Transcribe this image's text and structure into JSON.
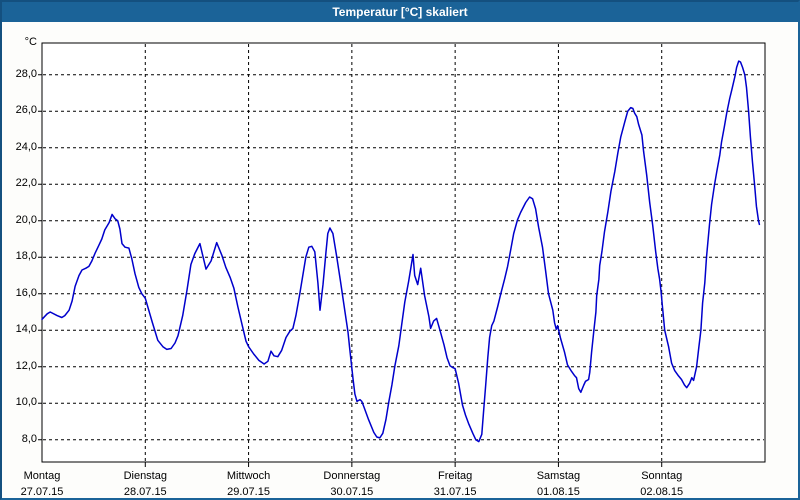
{
  "window": {
    "title": "Temperatur [°C] skaliert"
  },
  "colors": {
    "titlebar": "#1b6398",
    "window_border": "#1b6398",
    "plot_border": "#000000",
    "background": "#fdfdfb",
    "line": "#0000cc",
    "grid": "#000000"
  },
  "chart_data": {
    "type": "line",
    "title": "Temperatur [°C] skaliert",
    "ylabel": "°C",
    "grid": "dashed",
    "legend": "none",
    "y_plot_range": [
      6.78,
      29.74
    ],
    "y_ticks": [
      {
        "value": 8,
        "label": "8,0"
      },
      {
        "value": 10,
        "label": "10,0"
      },
      {
        "value": 12,
        "label": "12,0"
      },
      {
        "value": 14,
        "label": "14,0"
      },
      {
        "value": 16,
        "label": "16,0"
      },
      {
        "value": 18,
        "label": "18,0"
      },
      {
        "value": 20,
        "label": "20,0"
      },
      {
        "value": 22,
        "label": "22,0"
      },
      {
        "value": 24,
        "label": "24,0"
      },
      {
        "value": 26,
        "label": "26,0"
      },
      {
        "value": 28,
        "label": "28,0"
      }
    ],
    "x_hours_total": 168,
    "x_days": [
      {
        "day": "Montag",
        "date": "27.07.15",
        "hour": 0
      },
      {
        "day": "Dienstag",
        "date": "28.07.15",
        "hour": 24
      },
      {
        "day": "Mittwoch",
        "date": "29.07.15",
        "hour": 48
      },
      {
        "day": "Donnerstag",
        "date": "30.07.15",
        "hour": 72
      },
      {
        "day": "Freitag",
        "date": "31.07.15",
        "hour": 96
      },
      {
        "day": "Samstag",
        "date": "01.08.15",
        "hour": 120
      },
      {
        "day": "Sonntag",
        "date": "02.08.15",
        "hour": 144
      }
    ],
    "series": [
      {
        "name": "Temperatur",
        "color": "#0000cc",
        "points": [
          [
            0,
            14.6
          ],
          [
            1.2,
            14.9
          ],
          [
            1.9,
            15.0
          ],
          [
            3.5,
            14.8
          ],
          [
            4.6,
            14.7
          ],
          [
            5.3,
            14.8
          ],
          [
            6.3,
            15.1
          ],
          [
            7.0,
            15.6
          ],
          [
            7.7,
            16.4
          ],
          [
            8.6,
            17.0
          ],
          [
            9.3,
            17.3
          ],
          [
            10.2,
            17.4
          ],
          [
            10.9,
            17.5
          ],
          [
            11.6,
            17.8
          ],
          [
            12.3,
            18.2
          ],
          [
            13.2,
            18.65
          ],
          [
            13.9,
            19.0
          ],
          [
            14.6,
            19.5
          ],
          [
            15.6,
            19.9
          ],
          [
            16.3,
            20.35
          ],
          [
            17.0,
            20.1
          ],
          [
            17.6,
            20.0
          ],
          [
            18.1,
            19.55
          ],
          [
            18.6,
            18.75
          ],
          [
            19.3,
            18.55
          ],
          [
            20.2,
            18.5
          ],
          [
            20.9,
            17.9
          ],
          [
            21.6,
            17.1
          ],
          [
            22.5,
            16.35
          ],
          [
            23.2,
            16.0
          ],
          [
            24.0,
            15.75
          ],
          [
            25.6,
            14.45
          ],
          [
            26.9,
            13.45
          ],
          [
            28.1,
            13.1
          ],
          [
            29.0,
            12.95
          ],
          [
            30.0,
            13.0
          ],
          [
            30.9,
            13.3
          ],
          [
            31.6,
            13.7
          ],
          [
            32.7,
            14.8
          ],
          [
            33.7,
            16.2
          ],
          [
            34.6,
            17.6
          ],
          [
            35.5,
            18.2
          ],
          [
            36.7,
            18.75
          ],
          [
            38.1,
            17.35
          ],
          [
            39.3,
            17.8
          ],
          [
            40.6,
            18.8
          ],
          [
            41.8,
            18.1
          ],
          [
            42.7,
            17.45
          ],
          [
            43.7,
            16.9
          ],
          [
            44.6,
            16.3
          ],
          [
            45.5,
            15.3
          ],
          [
            46.5,
            14.3
          ],
          [
            47.4,
            13.4
          ],
          [
            48.0,
            13.1
          ],
          [
            49.2,
            12.7
          ],
          [
            50.4,
            12.35
          ],
          [
            51.6,
            12.15
          ],
          [
            52.5,
            12.3
          ],
          [
            53.2,
            12.85
          ],
          [
            53.9,
            12.6
          ],
          [
            54.8,
            12.55
          ],
          [
            55.7,
            12.9
          ],
          [
            56.7,
            13.6
          ],
          [
            57.6,
            13.95
          ],
          [
            58.3,
            14.1
          ],
          [
            59.0,
            14.8
          ],
          [
            59.9,
            16.0
          ],
          [
            60.6,
            17.0
          ],
          [
            61.3,
            18.0
          ],
          [
            62.0,
            18.55
          ],
          [
            62.7,
            18.6
          ],
          [
            63.4,
            18.3
          ],
          [
            64.1,
            16.6
          ],
          [
            64.6,
            15.1
          ],
          [
            65.3,
            16.5
          ],
          [
            66.0,
            18.3
          ],
          [
            66.4,
            19.3
          ],
          [
            66.9,
            19.6
          ],
          [
            67.6,
            19.3
          ],
          [
            68.5,
            18.0
          ],
          [
            69.4,
            16.6
          ],
          [
            70.4,
            15.0
          ],
          [
            71.1,
            13.9
          ],
          [
            71.5,
            13.0
          ],
          [
            72.0,
            11.9
          ],
          [
            72.3,
            11.3
          ],
          [
            72.7,
            10.5
          ],
          [
            73.2,
            10.1
          ],
          [
            73.9,
            10.2
          ],
          [
            74.3,
            10.1
          ],
          [
            74.8,
            9.8
          ],
          [
            75.9,
            9.1
          ],
          [
            77.1,
            8.4
          ],
          [
            77.8,
            8.15
          ],
          [
            78.5,
            8.1
          ],
          [
            79.2,
            8.35
          ],
          [
            79.9,
            9.1
          ],
          [
            80.6,
            10.1
          ],
          [
            81.3,
            11.0
          ],
          [
            82.0,
            12.05
          ],
          [
            82.9,
            13.15
          ],
          [
            83.6,
            14.35
          ],
          [
            84.3,
            15.55
          ],
          [
            85.2,
            16.7
          ],
          [
            85.7,
            17.4
          ],
          [
            86.2,
            18.15
          ],
          [
            86.6,
            17.0
          ],
          [
            87.3,
            16.5
          ],
          [
            88.0,
            17.4
          ],
          [
            88.9,
            15.9
          ],
          [
            89.9,
            14.75
          ],
          [
            90.3,
            14.1
          ],
          [
            91.0,
            14.5
          ],
          [
            91.7,
            14.65
          ],
          [
            92.4,
            14.05
          ],
          [
            93.4,
            13.2
          ],
          [
            94.1,
            12.5
          ],
          [
            94.8,
            12.05
          ],
          [
            95.5,
            11.95
          ],
          [
            96.0,
            11.9
          ],
          [
            96.8,
            11.1
          ],
          [
            97.7,
            9.9
          ],
          [
            98.4,
            9.35
          ],
          [
            99.1,
            8.9
          ],
          [
            100.1,
            8.35
          ],
          [
            100.8,
            8.0
          ],
          [
            101.5,
            7.9
          ],
          [
            102.2,
            8.3
          ],
          [
            102.6,
            9.5
          ],
          [
            103.1,
            11.0
          ],
          [
            103.6,
            12.5
          ],
          [
            104.0,
            13.6
          ],
          [
            104.5,
            14.25
          ],
          [
            105.0,
            14.5
          ],
          [
            105.9,
            15.3
          ],
          [
            106.6,
            16.0
          ],
          [
            107.5,
            16.8
          ],
          [
            108.2,
            17.5
          ],
          [
            108.9,
            18.4
          ],
          [
            109.6,
            19.3
          ],
          [
            110.5,
            20.05
          ],
          [
            111.2,
            20.45
          ],
          [
            112.4,
            21.0
          ],
          [
            113.3,
            21.3
          ],
          [
            114.0,
            21.2
          ],
          [
            114.7,
            20.65
          ],
          [
            115.4,
            19.65
          ],
          [
            116.3,
            18.55
          ],
          [
            117.0,
            17.3
          ],
          [
            117.7,
            16.0
          ],
          [
            118.7,
            15.1
          ],
          [
            119.1,
            14.4
          ],
          [
            119.5,
            14.05
          ],
          [
            119.8,
            14.25
          ],
          [
            120.5,
            13.55
          ],
          [
            121.4,
            12.8
          ],
          [
            122.1,
            12.1
          ],
          [
            122.9,
            11.8
          ],
          [
            123.8,
            11.5
          ],
          [
            124.2,
            11.4
          ],
          [
            124.7,
            10.8
          ],
          [
            125.2,
            10.6
          ],
          [
            125.9,
            11.0
          ],
          [
            126.3,
            11.2
          ],
          [
            127.0,
            11.3
          ],
          [
            127.3,
            11.7
          ],
          [
            127.7,
            12.8
          ],
          [
            128.2,
            13.9
          ],
          [
            128.7,
            15.0
          ],
          [
            128.9,
            15.9
          ],
          [
            129.4,
            16.8
          ],
          [
            129.6,
            17.55
          ],
          [
            130.1,
            18.3
          ],
          [
            130.7,
            19.4
          ],
          [
            131.5,
            20.5
          ],
          [
            132.2,
            21.6
          ],
          [
            133.1,
            22.7
          ],
          [
            133.8,
            23.7
          ],
          [
            134.5,
            24.6
          ],
          [
            135.4,
            25.4
          ],
          [
            136.1,
            26.0
          ],
          [
            136.8,
            26.2
          ],
          [
            137.3,
            26.15
          ],
          [
            137.7,
            25.9
          ],
          [
            138.2,
            25.7
          ],
          [
            138.6,
            25.3
          ],
          [
            139.4,
            24.7
          ],
          [
            139.8,
            23.8
          ],
          [
            140.5,
            22.5
          ],
          [
            141.2,
            21.0
          ],
          [
            141.9,
            19.75
          ],
          [
            142.6,
            18.3
          ],
          [
            143.1,
            17.4
          ],
          [
            143.5,
            16.8
          ],
          [
            143.8,
            16.2
          ],
          [
            144.2,
            15.2
          ],
          [
            144.7,
            14.0
          ],
          [
            145.6,
            13.1
          ],
          [
            146.3,
            12.2
          ],
          [
            147.0,
            11.8
          ],
          [
            147.9,
            11.5
          ],
          [
            148.6,
            11.3
          ],
          [
            149.3,
            11.0
          ],
          [
            149.8,
            10.85
          ],
          [
            150.5,
            11.1
          ],
          [
            151.0,
            11.4
          ],
          [
            151.4,
            11.25
          ],
          [
            152.1,
            12.0
          ],
          [
            152.6,
            13.0
          ],
          [
            153.1,
            14.0
          ],
          [
            153.5,
            15.5
          ],
          [
            154.0,
            16.6
          ],
          [
            154.4,
            18.0
          ],
          [
            155.1,
            19.8
          ],
          [
            155.6,
            20.9
          ],
          [
            156.3,
            22.0
          ],
          [
            156.8,
            22.7
          ],
          [
            157.5,
            23.6
          ],
          [
            157.9,
            24.3
          ],
          [
            158.6,
            25.2
          ],
          [
            159.1,
            25.9
          ],
          [
            159.8,
            26.7
          ],
          [
            160.3,
            27.2
          ],
          [
            161.0,
            27.9
          ],
          [
            161.4,
            28.4
          ],
          [
            161.9,
            28.75
          ],
          [
            162.3,
            28.7
          ],
          [
            162.8,
            28.4
          ],
          [
            163.3,
            28.0
          ],
          [
            163.7,
            27.3
          ],
          [
            164.2,
            26.0
          ],
          [
            164.6,
            24.6
          ],
          [
            165.1,
            23.2
          ],
          [
            165.6,
            21.9
          ],
          [
            166.0,
            20.8
          ],
          [
            166.5,
            20.0
          ],
          [
            166.7,
            19.8
          ]
        ]
      }
    ]
  }
}
